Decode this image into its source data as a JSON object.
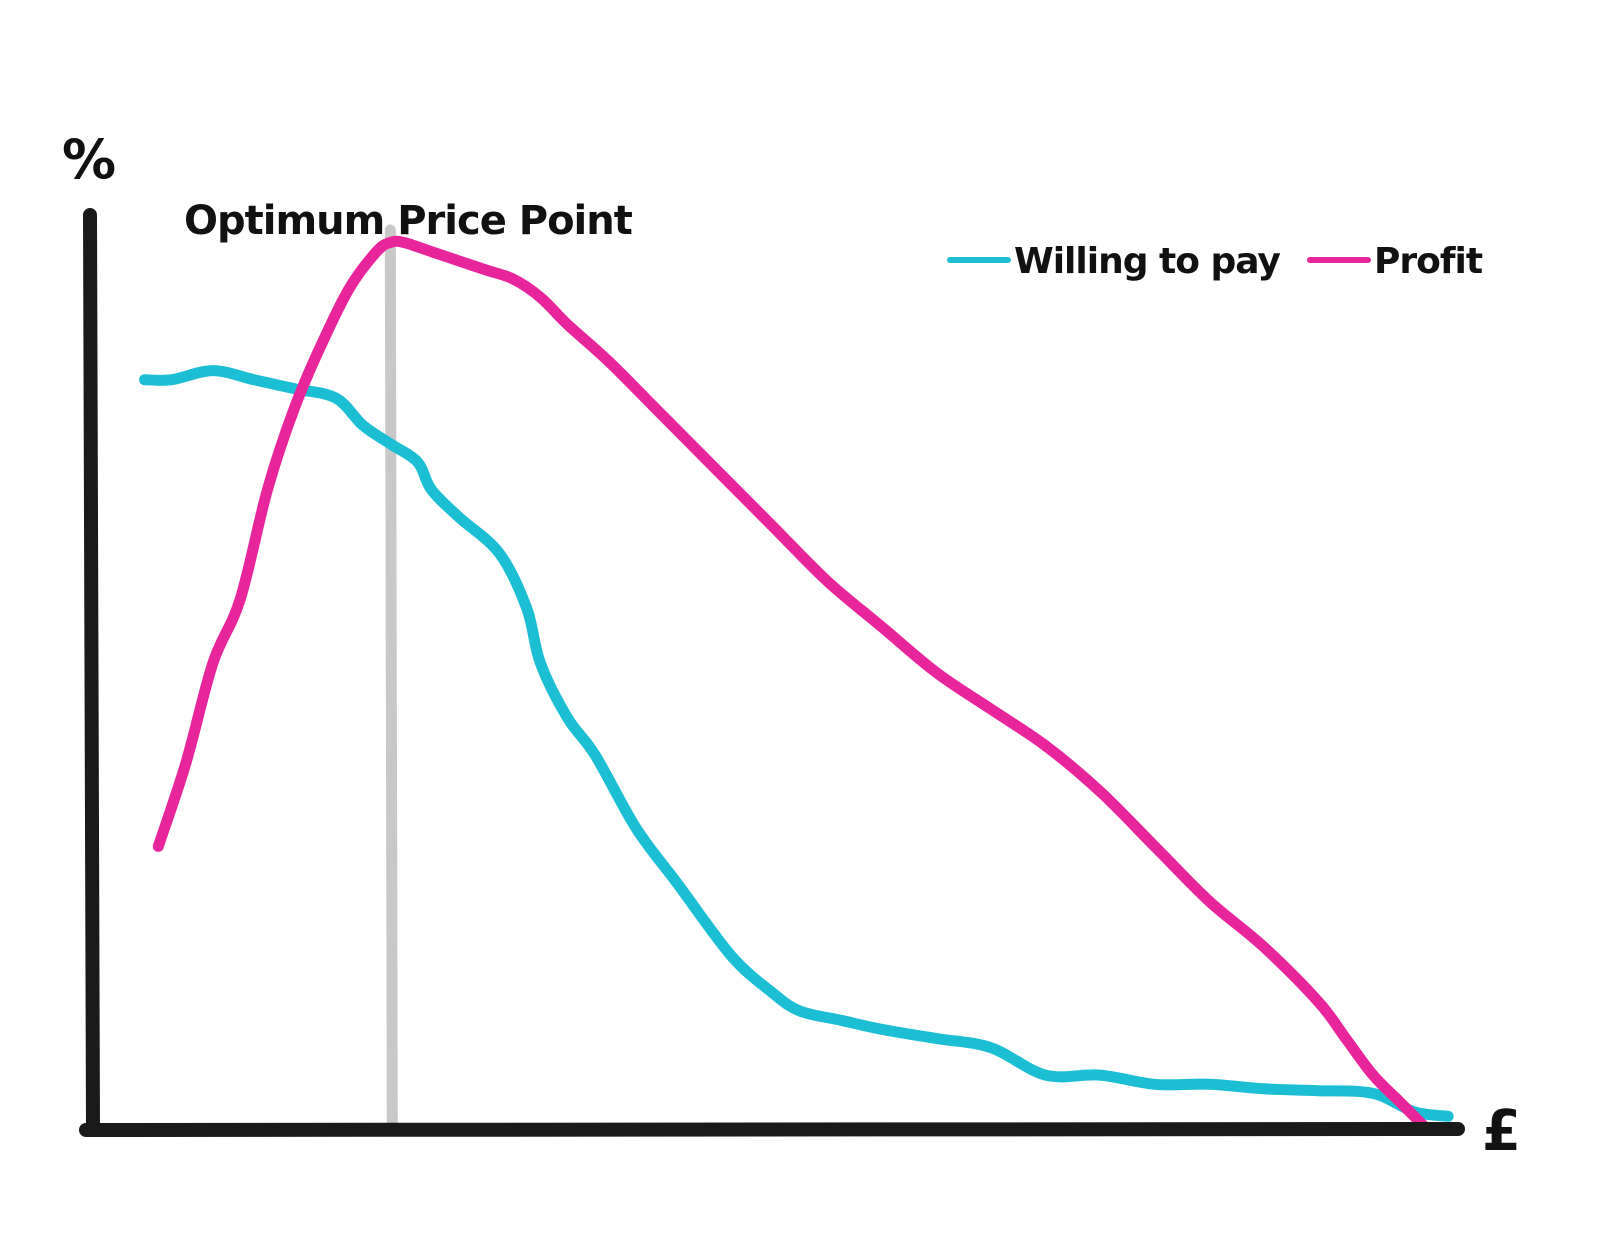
{
  "chart_data": {
    "type": "line",
    "title": "",
    "ylabel": "%",
    "xlabel": "£",
    "annotation": {
      "label": "Optimum Price Point",
      "x": 22
    },
    "xlim": [
      0,
      100
    ],
    "ylim": [
      0,
      100
    ],
    "grid": false,
    "legend_position": "top-right",
    "series": [
      {
        "name": "Willing to pay",
        "color": "#1bbed3",
        "x": [
          4,
          6,
          9,
          12,
          15,
          18,
          20,
          22,
          24,
          25,
          27,
          30,
          32,
          33,
          35,
          37,
          40,
          43,
          47,
          50,
          52,
          55,
          58,
          62,
          66,
          70,
          74,
          78,
          82,
          86,
          90,
          94,
          97,
          99.5
        ],
        "y": [
          82,
          82,
          83,
          82,
          81,
          80,
          77,
          75,
          73,
          70,
          67,
          63,
          57,
          51,
          45,
          41,
          33,
          27,
          19,
          15,
          13,
          12,
          11,
          10,
          9,
          6,
          6,
          5,
          5,
          4.5,
          4.3,
          4,
          2,
          1.5
        ]
      },
      {
        "name": "Profit",
        "color": "#e8259a",
        "x": [
          5,
          7,
          9,
          11,
          13,
          15,
          17,
          19,
          21,
          22,
          23,
          25,
          27,
          29,
          31,
          33,
          35,
          38,
          42,
          46,
          50,
          54,
          58,
          62,
          66,
          70,
          74,
          78,
          82,
          86,
          90,
          92,
          94,
          96,
          98
        ],
        "y": [
          31,
          40,
          51,
          58,
          70,
          79,
          86,
          92,
          96,
          97,
          97,
          96,
          95,
          94,
          93,
          91,
          88,
          84,
          78,
          72,
          66,
          60,
          55,
          50,
          46,
          42,
          37,
          31,
          25,
          20,
          14,
          10,
          6,
          3,
          0
        ]
      }
    ]
  },
  "colors": {
    "axis": "#1a1a1a",
    "annotation_line": "#c8c8c8",
    "background": "#ffffff"
  }
}
